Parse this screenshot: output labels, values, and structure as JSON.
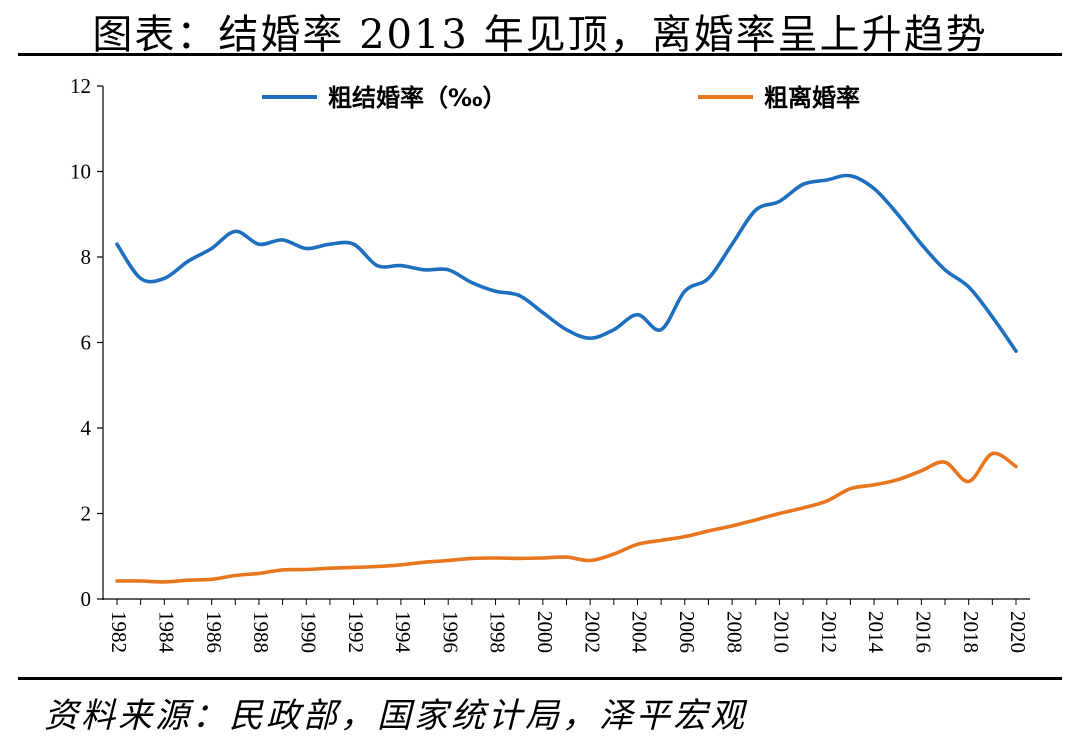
{
  "title": "图表：结婚率 2013 年见顶，离婚率呈上升趋势",
  "source": "资料来源：民政部，国家统计局，泽平宏观",
  "chart_data": {
    "type": "line",
    "title": "图表：结婚率 2013 年见顶，离婚率呈上升趋势",
    "x": [
      1982,
      1983,
      1984,
      1985,
      1986,
      1987,
      1988,
      1989,
      1990,
      1991,
      1992,
      1993,
      1994,
      1995,
      1996,
      1997,
      1998,
      1999,
      2000,
      2001,
      2002,
      2003,
      2004,
      2005,
      2006,
      2007,
      2008,
      2009,
      2010,
      2011,
      2012,
      2013,
      2014,
      2015,
      2016,
      2017,
      2018,
      2019,
      2020
    ],
    "x_tick_labels": [
      "1982",
      "1984",
      "1986",
      "1988",
      "1990",
      "1992",
      "1994",
      "1996",
      "1998",
      "2000",
      "2002",
      "2004",
      "2006",
      "2008",
      "2010",
      "2012",
      "2014",
      "2016",
      "2018",
      "2020"
    ],
    "ylim": [
      0,
      12
    ],
    "y_ticks": [
      0,
      2,
      4,
      6,
      8,
      10,
      12
    ],
    "legend_position": "top",
    "series": [
      {
        "name": "粗结婚率（‰）",
        "color": "#1F6FBF",
        "values": [
          8.3,
          7.5,
          7.5,
          7.9,
          8.2,
          8.6,
          8.3,
          8.4,
          8.2,
          8.3,
          8.3,
          7.8,
          7.8,
          7.7,
          7.7,
          7.4,
          7.2,
          7.1,
          6.7,
          6.3,
          6.1,
          6.3,
          6.65,
          6.3,
          7.2,
          7.5,
          8.3,
          9.1,
          9.3,
          9.7,
          9.8,
          9.9,
          9.6,
          9.0,
          8.3,
          7.7,
          7.3,
          6.6,
          5.8
        ]
      },
      {
        "name": "粗离婚率",
        "color": "#E8761E",
        "values": [
          0.42,
          0.42,
          0.4,
          0.44,
          0.46,
          0.55,
          0.6,
          0.68,
          0.69,
          0.72,
          0.74,
          0.76,
          0.8,
          0.86,
          0.9,
          0.95,
          0.96,
          0.95,
          0.96,
          0.98,
          0.9,
          1.05,
          1.28,
          1.37,
          1.46,
          1.59,
          1.71,
          1.85,
          2.0,
          2.13,
          2.29,
          2.58,
          2.67,
          2.79,
          3.0,
          3.2,
          2.75,
          3.4,
          3.1
        ]
      }
    ]
  }
}
